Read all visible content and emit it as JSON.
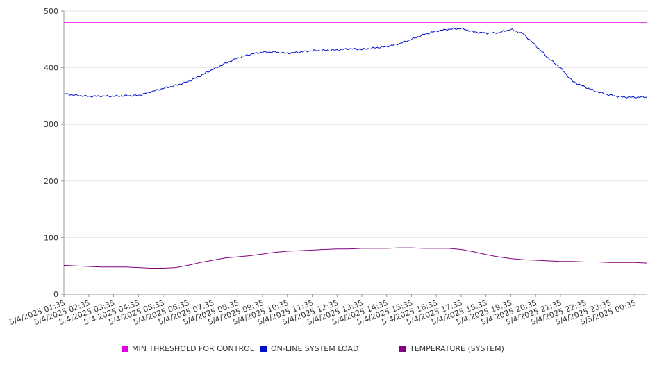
{
  "chart_data": {
    "type": "line",
    "title": "",
    "xlabel": "",
    "ylabel": "",
    "ylim": [
      0,
      500
    ],
    "y_ticks": [
      0,
      100,
      200,
      300,
      400,
      500
    ],
    "grid": true,
    "legend_position": "bottom",
    "x_tick_labels": [
      "5/4/2025 01:35",
      "5/4/2025 02:35",
      "5/4/2025 03:35",
      "5/4/2025 04:35",
      "5/4/2025 05:35",
      "5/4/2025 06:35",
      "5/4/2025 07:35",
      "5/4/2025 08:35",
      "5/4/2025 09:35",
      "5/4/2025 10:35",
      "5/4/2025 11:35",
      "5/4/2025 12:35",
      "5/4/2025 13:35",
      "5/4/2025 14:35",
      "5/4/2025 15:35",
      "5/4/2025 16:35",
      "5/4/2025 17:35",
      "5/4/2025 18:35",
      "5/4/2025 19:35",
      "5/4/2025 20:35",
      "5/4/2025 21:35",
      "5/4/2025 22:35",
      "5/4/2025 23:35",
      "5/5/2025 00:35"
    ],
    "x": [
      "5/4/2025 01:35",
      "5/4/2025 02:05",
      "5/4/2025 02:35",
      "5/4/2025 03:05",
      "5/4/2025 03:35",
      "5/4/2025 04:05",
      "5/4/2025 04:35",
      "5/4/2025 05:05",
      "5/4/2025 05:35",
      "5/4/2025 06:05",
      "5/4/2025 06:35",
      "5/4/2025 07:05",
      "5/4/2025 07:35",
      "5/4/2025 08:05",
      "5/4/2025 08:35",
      "5/4/2025 09:05",
      "5/4/2025 09:35",
      "5/4/2025 10:05",
      "5/4/2025 10:35",
      "5/4/2025 11:05",
      "5/4/2025 11:35",
      "5/4/2025 12:05",
      "5/4/2025 12:35",
      "5/4/2025 13:05",
      "5/4/2025 13:35",
      "5/4/2025 14:05",
      "5/4/2025 14:35",
      "5/4/2025 15:05",
      "5/4/2025 15:35",
      "5/4/2025 16:05",
      "5/4/2025 16:35",
      "5/4/2025 17:05",
      "5/4/2025 17:35",
      "5/4/2025 18:05",
      "5/4/2025 18:35",
      "5/4/2025 19:05",
      "5/4/2025 19:35",
      "5/4/2025 20:05",
      "5/4/2025 20:35",
      "5/4/2025 21:05",
      "5/4/2025 21:35",
      "5/4/2025 22:05",
      "5/4/2025 22:35",
      "5/4/2025 23:05",
      "5/4/2025 23:35",
      "5/5/2025 00:05",
      "5/5/2025 00:35",
      "5/5/2025 01:05"
    ],
    "series": [
      {
        "name": "MIN THRESHOLD FOR CONTROL",
        "color": "#e000e0",
        "values": [
          480,
          480,
          480,
          480,
          480,
          480,
          480,
          480,
          480,
          480,
          480,
          480,
          480,
          480,
          480,
          480,
          480,
          480,
          480,
          480,
          480,
          480,
          480,
          480,
          480,
          480,
          480,
          480,
          480,
          480,
          480,
          480,
          480,
          480,
          480,
          480,
          480,
          480,
          480,
          480,
          480,
          480,
          480,
          480,
          480,
          480,
          480,
          480
        ]
      },
      {
        "name": "ON-LINE SYSTEM LOAD",
        "color": "#0010c8",
        "values": [
          354,
          352,
          350,
          350,
          349,
          350,
          351,
          358,
          364,
          369,
          375,
          385,
          397,
          408,
          418,
          424,
          427,
          427,
          425,
          428,
          431,
          431,
          431,
          433,
          432,
          435,
          438,
          443,
          450,
          458,
          464,
          468,
          470,
          464,
          461,
          461,
          467,
          460,
          440,
          418,
          400,
          375,
          365,
          357,
          352,
          349,
          348,
          348
        ]
      },
      {
        "name": "TEMPERATURE (SYSTEM)",
        "color": "#800080",
        "values": [
          51,
          50,
          49,
          48,
          48,
          48,
          47,
          46,
          46,
          47,
          51,
          56,
          60,
          64,
          66,
          68,
          71,
          74,
          76,
          77,
          78,
          79,
          80,
          80,
          81,
          81,
          81,
          82,
          82,
          81,
          81,
          81,
          79,
          75,
          70,
          66,
          63,
          61,
          60,
          59,
          58,
          58,
          57,
          57,
          56,
          56,
          56,
          55
        ]
      }
    ]
  }
}
